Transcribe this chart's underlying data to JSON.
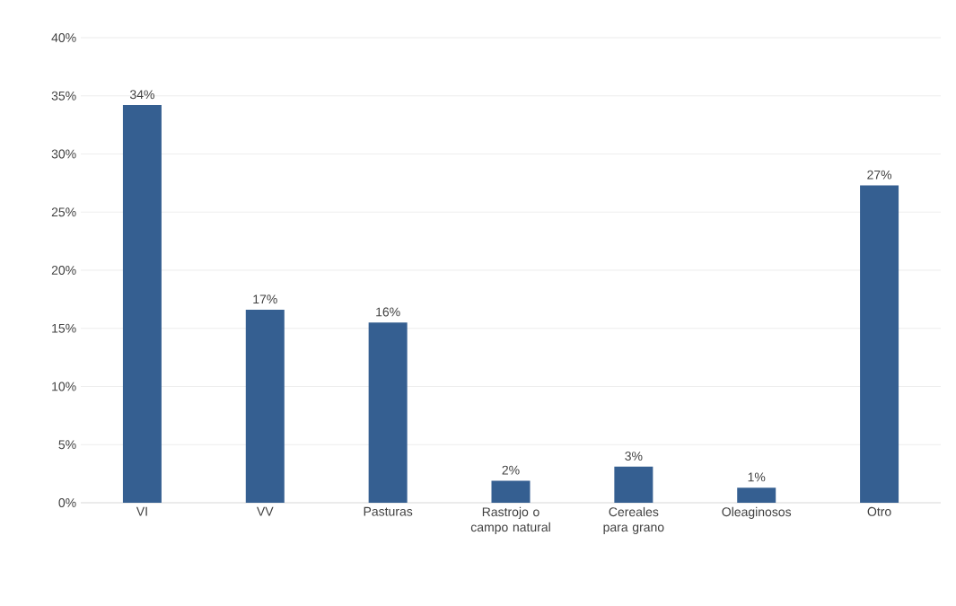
{
  "chart_data": {
    "type": "bar",
    "categories": [
      "VI",
      "VV",
      "Pasturas",
      "Rastrojo o campo natural",
      "Cereales para grano",
      "Oleaginosos",
      "Otro"
    ],
    "values": [
      34.2,
      16.6,
      15.5,
      1.9,
      3.1,
      1.3,
      27.3
    ],
    "value_labels": [
      "34%",
      "17%",
      "16%",
      "2%",
      "3%",
      "1%",
      "27%"
    ],
    "color": "#355f91",
    "ylim": [
      0,
      40
    ],
    "yticks": [
      {
        "value": 0,
        "label": "0%"
      },
      {
        "value": 5,
        "label": "5%"
      },
      {
        "value": 10,
        "label": "10%"
      },
      {
        "value": 15,
        "label": "15%"
      },
      {
        "value": 20,
        "label": "20%"
      },
      {
        "value": 25,
        "label": "25%"
      },
      {
        "value": 30,
        "label": "30%"
      },
      {
        "value": 35,
        "label": "35%"
      },
      {
        "value": 40,
        "label": "40%"
      }
    ],
    "grid": "y"
  }
}
